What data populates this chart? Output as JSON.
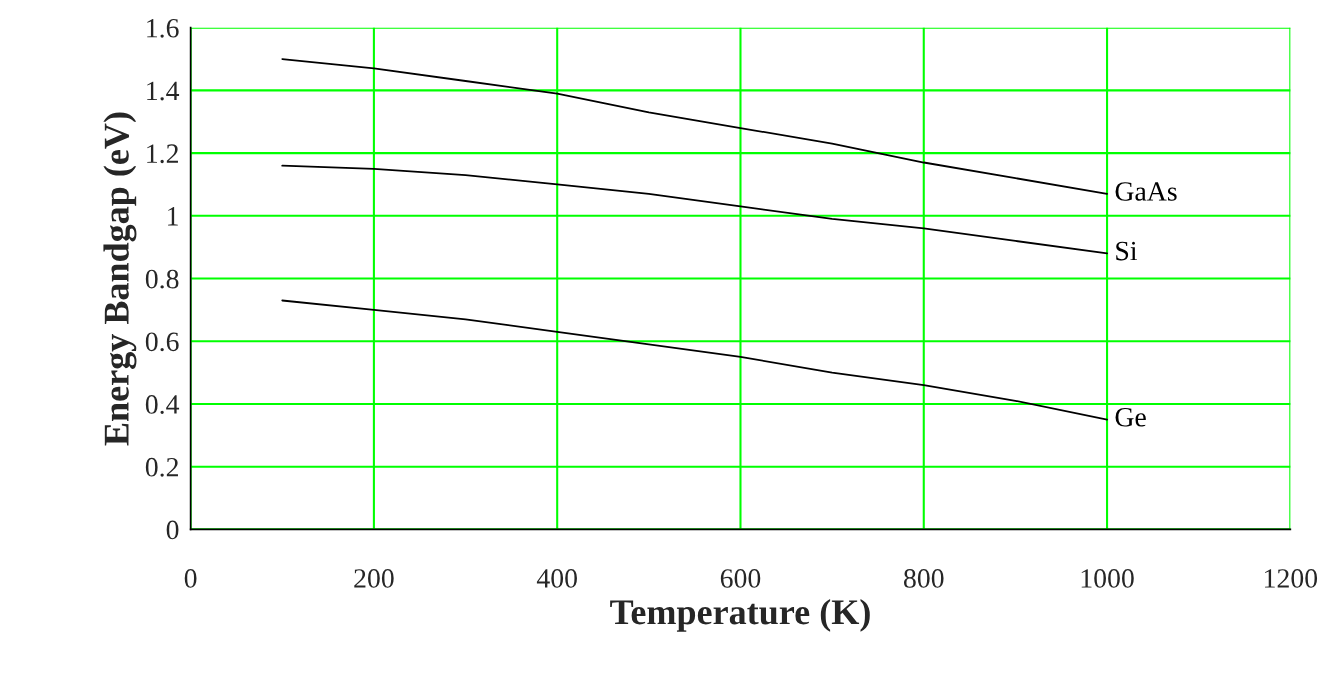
{
  "chart_data": {
    "type": "line",
    "xlabel": "Temperature (K)",
    "ylabel": "Energy Bandgap (eV)",
    "x": [
      100,
      200,
      300,
      400,
      500,
      600,
      700,
      800,
      900,
      1000
    ],
    "series": [
      {
        "name": "GaAs",
        "color": "#000000",
        "values": [
          1.5,
          1.47,
          1.43,
          1.39,
          1.33,
          1.28,
          1.23,
          1.17,
          1.12,
          1.07
        ]
      },
      {
        "name": "Si",
        "color": "#000000",
        "values": [
          1.16,
          1.15,
          1.13,
          1.1,
          1.07,
          1.03,
          0.99,
          0.96,
          0.92,
          0.88
        ]
      },
      {
        "name": "Ge",
        "color": "#000000",
        "values": [
          0.73,
          0.7,
          0.67,
          0.63,
          0.59,
          0.55,
          0.5,
          0.46,
          0.41,
          0.35
        ]
      }
    ],
    "xlim": [
      0,
      1200
    ],
    "xticks": [
      0,
      200,
      400,
      600,
      800,
      1000,
      1200
    ],
    "ylim": [
      0,
      1.6
    ],
    "yticks": [
      0,
      0.2,
      0.4,
      0.6,
      0.8,
      1,
      1.2,
      1.4,
      1.6
    ],
    "grid": true,
    "legend": false,
    "marker": "none",
    "line_style": "solid"
  }
}
